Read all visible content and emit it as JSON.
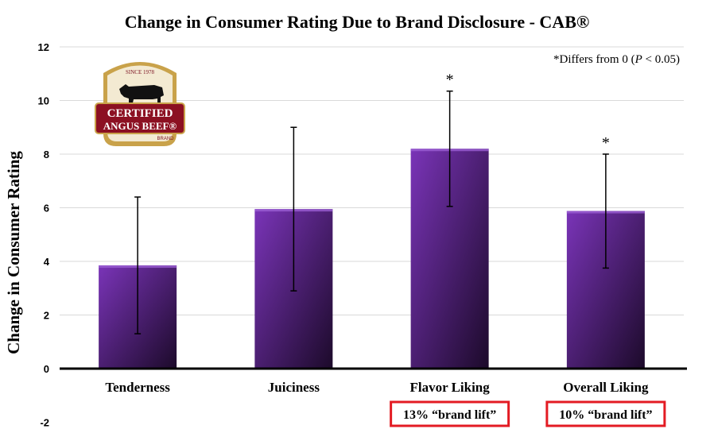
{
  "chart_data": {
    "type": "bar",
    "title": "Change in Consumer Rating Due to Brand Disclosure - CAB®",
    "ylabel": "Change in Consumer Rating",
    "xlabel": "",
    "categories": [
      "Tenderness",
      "Juiciness",
      "Flavor Liking",
      "Overall Liking"
    ],
    "values": [
      3.85,
      5.95,
      8.2,
      5.88
    ],
    "error_low": [
      1.3,
      2.9,
      6.05,
      3.75
    ],
    "error_high": [
      6.4,
      9.0,
      10.35,
      8.0
    ],
    "significant": [
      false,
      false,
      true,
      true
    ],
    "significance_marker": "*",
    "ylim": [
      -2,
      12
    ],
    "yticks": [
      -2,
      0,
      2,
      4,
      6,
      8,
      10,
      12
    ],
    "grid": true,
    "bar_color_top": "#7a34b8",
    "bar_color_bottom": "#1c0a2a",
    "note_prefix": "*Differs from 0 (",
    "note_p": "P",
    "note_suffix": " < 0.05)",
    "callouts": [
      {
        "category": "Flavor Liking",
        "text": "13% “brand lift”"
      },
      {
        "category": "Overall Liking",
        "text": "10% “brand lift”"
      }
    ],
    "callout_border_color": "#e31b23"
  },
  "logo": {
    "top_text": "SINCE 1978",
    "line1": "CERTIFIED",
    "line2": "ANGUS BEEF®",
    "bottom_text": "BRAND"
  }
}
